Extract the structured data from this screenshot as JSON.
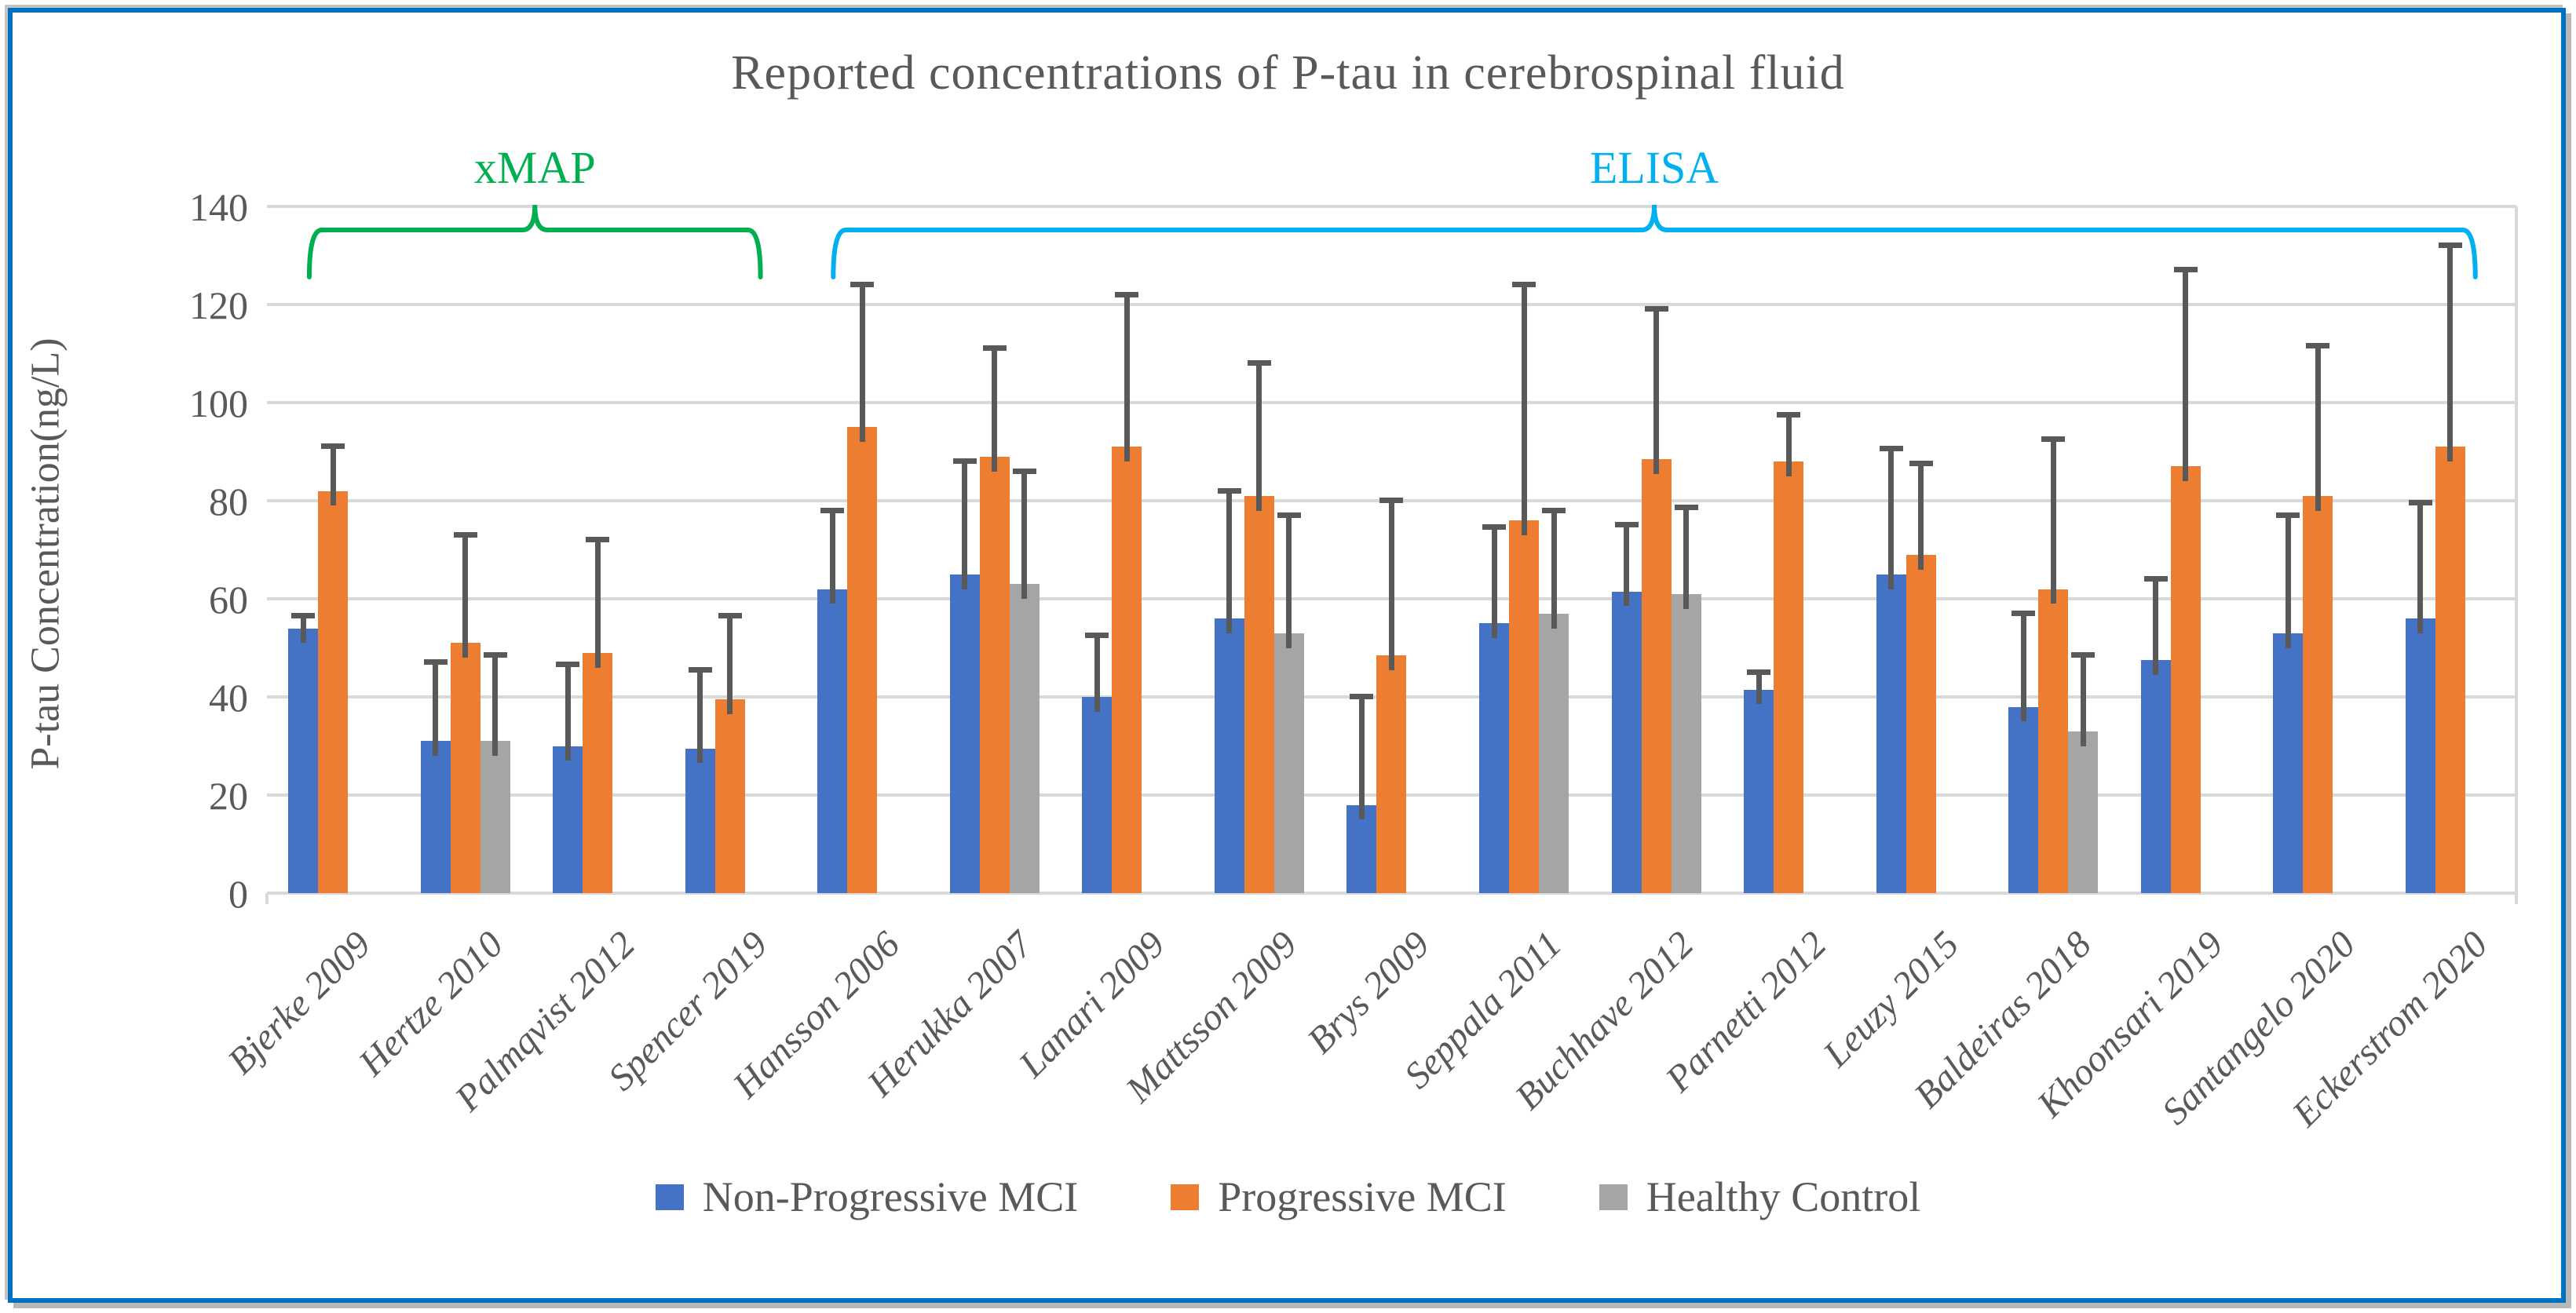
{
  "figure": {
    "title": "Reported concentrations of P-tau in cerebrospinal fluid",
    "y_axis_title": "P-tau Concentration(ng/L)"
  },
  "colors": {
    "frame_border": "#0070C0",
    "frame_shadow": "#B9B9B9",
    "gridline": "#D9D9D9",
    "axis_text": "#595959",
    "error_bar": "#595959"
  },
  "chart_data": {
    "type": "bar",
    "title": "Reported concentrations of P-tau in cerebrospinal fluid",
    "xlabel": "",
    "ylabel": "P-tau Concentration(ng/L)",
    "ylim": [
      0,
      140
    ],
    "yticks": [
      0,
      20,
      40,
      60,
      80,
      100,
      120,
      140
    ],
    "grid": true,
    "legend_position": "bottom",
    "error_bars": "upper",
    "categories": [
      "Bjerke 2009",
      "Hertze 2010",
      "Palmqvist 2012",
      "Spencer 2019",
      "Hansson 2006",
      "Herukka 2007",
      "Lanari 2009",
      "Mattsson 2009",
      "Brys 2009",
      "Seppala 2011",
      "Buchhave 2012",
      "Parnetti 2012",
      "Leuzy 2015",
      "Baldeiras 2018",
      "Khoonsari 2019",
      "Santangelo 2020",
      "Eckerstrom 2020"
    ],
    "series": [
      {
        "name": "Non-Progressive MCI",
        "color": "#4472C4",
        "values": [
          54,
          31,
          30,
          29.5,
          62,
          65,
          40,
          56,
          18,
          55,
          61.5,
          41.5,
          65,
          38,
          47.5,
          53,
          56
        ],
        "error_top": [
          56.5,
          47,
          46.5,
          45.5,
          78,
          88,
          52.5,
          82,
          40,
          74.5,
          75,
          45,
          90.5,
          57,
          64,
          77,
          79.5
        ]
      },
      {
        "name": "Progressive MCI",
        "color": "#ED7D31",
        "values": [
          82,
          51,
          49,
          39.5,
          95,
          89,
          91,
          81,
          48.5,
          76,
          88.5,
          88,
          69,
          62,
          87,
          81,
          91
        ],
        "error_top": [
          91,
          73,
          72,
          56.5,
          124,
          111,
          122,
          108,
          80,
          124,
          119,
          97.5,
          87.5,
          92.5,
          127,
          111.5,
          132
        ]
      },
      {
        "name": "Healthy Control",
        "color": "#A5A5A5",
        "values": [
          null,
          31,
          null,
          null,
          null,
          63,
          null,
          53,
          null,
          57,
          61,
          null,
          null,
          33,
          null,
          null,
          null
        ],
        "error_top": [
          null,
          48.5,
          null,
          null,
          null,
          86,
          null,
          77,
          null,
          78,
          78.5,
          null,
          null,
          48.5,
          null,
          null,
          null
        ]
      }
    ],
    "method_brackets": [
      {
        "label": "xMAP",
        "color": "#00B050",
        "category_span": [
          0.32,
          3.73
        ]
      },
      {
        "label": "ELISA",
        "color": "#00B0F0",
        "category_span": [
          4.28,
          16.69
        ]
      }
    ]
  }
}
